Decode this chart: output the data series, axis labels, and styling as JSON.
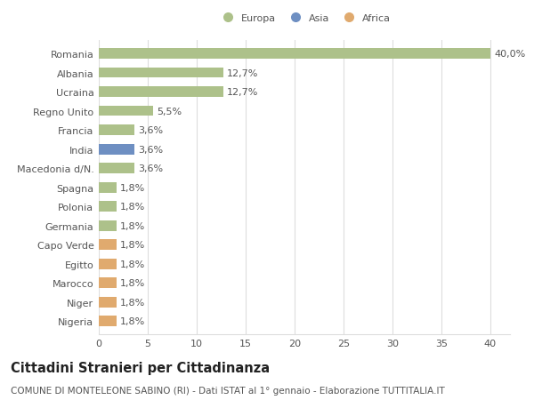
{
  "countries": [
    "Romania",
    "Albania",
    "Ucraina",
    "Regno Unito",
    "Francia",
    "India",
    "Macedonia d/N.",
    "Spagna",
    "Polonia",
    "Germania",
    "Capo Verde",
    "Egitto",
    "Marocco",
    "Niger",
    "Nigeria"
  ],
  "values": [
    40.0,
    12.7,
    12.7,
    5.5,
    3.6,
    3.6,
    3.6,
    1.8,
    1.8,
    1.8,
    1.8,
    1.8,
    1.8,
    1.8,
    1.8
  ],
  "labels": [
    "40,0%",
    "12,7%",
    "12,7%",
    "5,5%",
    "3,6%",
    "3,6%",
    "3,6%",
    "1,8%",
    "1,8%",
    "1,8%",
    "1,8%",
    "1,8%",
    "1,8%",
    "1,8%",
    "1,8%"
  ],
  "continents": [
    "Europa",
    "Europa",
    "Europa",
    "Europa",
    "Europa",
    "Asia",
    "Europa",
    "Europa",
    "Europa",
    "Europa",
    "Africa",
    "Africa",
    "Africa",
    "Africa",
    "Africa"
  ],
  "colors": {
    "Europa": "#adc18a",
    "Asia": "#6e8fc2",
    "Africa": "#e0aa6e"
  },
  "legend_entries": [
    "Europa",
    "Asia",
    "Africa"
  ],
  "legend_colors": [
    "#adc18a",
    "#6e8fc2",
    "#e0aa6e"
  ],
  "xlim": [
    0,
    42
  ],
  "xticks": [
    0,
    5,
    10,
    15,
    20,
    25,
    30,
    35,
    40
  ],
  "title": "Cittadini Stranieri per Cittadinanza",
  "subtitle": "COMUNE DI MONTELEONE SABINO (RI) - Dati ISTAT al 1° gennaio - Elaborazione TUTTITALIA.IT",
  "background_color": "#ffffff",
  "grid_color": "#dddddd",
  "bar_height": 0.55,
  "label_fontsize": 8.0,
  "tick_fontsize": 8.0,
  "title_fontsize": 10.5,
  "subtitle_fontsize": 7.5
}
